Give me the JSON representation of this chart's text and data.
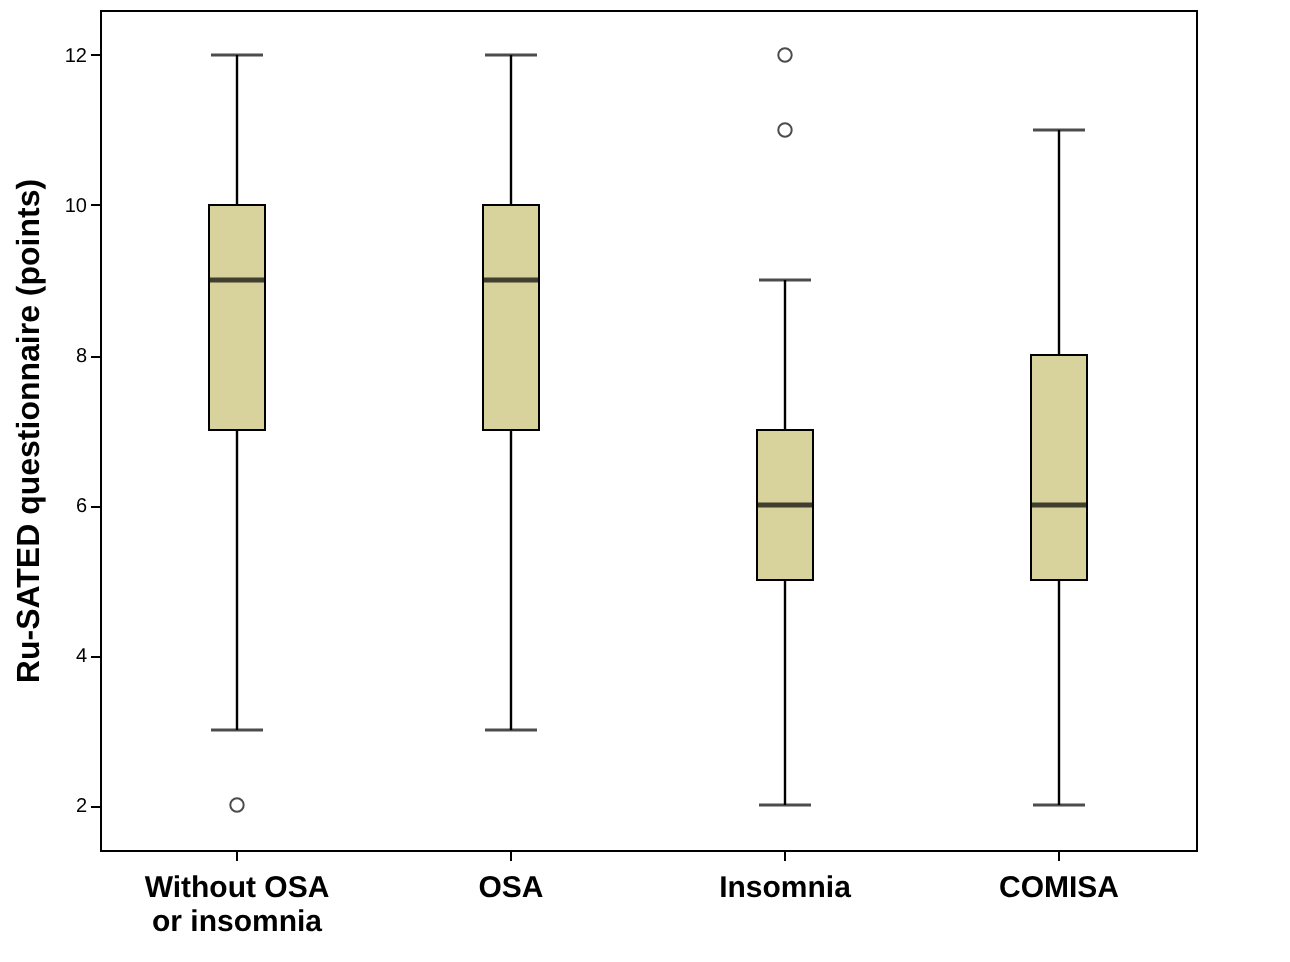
{
  "chart_data": {
    "type": "box",
    "ylabel": "Ru-SATED questionnaire (points)",
    "categories": [
      "Without OSA or insomnia",
      "OSA",
      "Insomnia",
      "COMISA"
    ],
    "ylim": [
      1.4,
      12.6
    ],
    "yticks": [
      2,
      4,
      6,
      8,
      10,
      12
    ],
    "grid": false,
    "series": [
      {
        "color": "#d8d29d",
        "boxes": [
          {
            "low": 3,
            "q1": 7,
            "median": 9,
            "q3": 10,
            "high": 12,
            "outliers": [
              2
            ]
          },
          {
            "low": 3,
            "q1": 7,
            "median": 9,
            "q3": 10,
            "high": 12
          },
          {
            "low": 2,
            "q1": 5,
            "median": 6,
            "q3": 7,
            "high": 9,
            "outliers": [
              11,
              12
            ]
          },
          {
            "low": 2,
            "q1": 5,
            "median": 6,
            "q3": 8,
            "high": 11
          }
        ]
      }
    ]
  }
}
